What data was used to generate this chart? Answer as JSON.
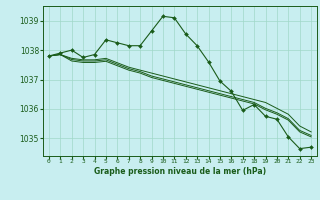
{
  "title": "Graphe pression niveau de la mer (hPa)",
  "background_color": "#c8eef0",
  "grid_color": "#a0d8c8",
  "line_color": "#1a5c1a",
  "x_labels": [
    "0",
    "1",
    "2",
    "3",
    "4",
    "5",
    "6",
    "7",
    "8",
    "9",
    "10",
    "11",
    "12",
    "13",
    "14",
    "15",
    "16",
    "17",
    "18",
    "19",
    "20",
    "21",
    "22",
    "23"
  ],
  "ylim": [
    1034.4,
    1039.5
  ],
  "yticks": [
    1035,
    1036,
    1037,
    1038,
    1039
  ],
  "series1": [
    1037.8,
    1037.9,
    1038.0,
    1037.75,
    1037.85,
    1038.35,
    1038.25,
    1038.15,
    1038.15,
    1038.65,
    1039.15,
    1039.1,
    1038.55,
    1038.15,
    1037.6,
    1036.95,
    1036.6,
    1035.95,
    1036.15,
    1035.75,
    1035.65,
    1035.05,
    1034.65,
    1034.7
  ],
  "series2": [
    1037.8,
    1037.85,
    1037.72,
    1037.67,
    1037.67,
    1037.72,
    1037.57,
    1037.42,
    1037.32,
    1037.22,
    1037.12,
    1037.02,
    1036.92,
    1036.82,
    1036.72,
    1036.62,
    1036.52,
    1036.42,
    1036.32,
    1036.22,
    1036.02,
    1035.82,
    1035.42,
    1035.22
  ],
  "series3": [
    1037.8,
    1037.85,
    1037.68,
    1037.63,
    1037.63,
    1037.67,
    1037.52,
    1037.37,
    1037.27,
    1037.12,
    1037.02,
    1036.92,
    1036.82,
    1036.72,
    1036.62,
    1036.52,
    1036.42,
    1036.32,
    1036.22,
    1036.02,
    1035.87,
    1035.67,
    1035.27,
    1035.1
  ],
  "series4": [
    1037.8,
    1037.85,
    1037.63,
    1037.58,
    1037.58,
    1037.62,
    1037.47,
    1037.32,
    1037.22,
    1037.07,
    1036.97,
    1036.87,
    1036.77,
    1036.67,
    1036.57,
    1036.47,
    1036.37,
    1036.27,
    1036.17,
    1035.97,
    1035.82,
    1035.62,
    1035.22,
    1035.05
  ]
}
